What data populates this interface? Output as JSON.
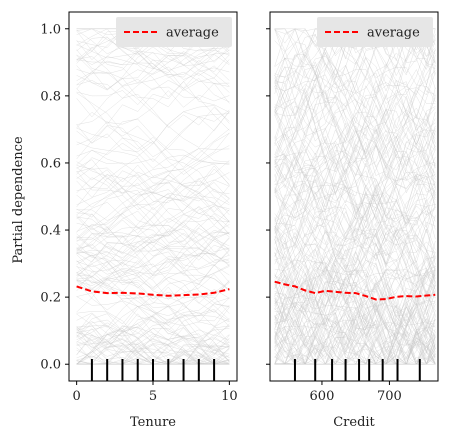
{
  "figure": {
    "ylabel": "Partial dependence",
    "sharey": true,
    "ylim": [
      -0.05,
      1.05
    ],
    "yticks": [
      0.0,
      0.2,
      0.4,
      0.6,
      0.8,
      1.0
    ],
    "ytick_labels": [
      "0.0",
      "0.2",
      "0.4",
      "0.6",
      "0.8",
      "1.0"
    ],
    "average_color": "#ff0000",
    "ice_color": "#c8c8c8",
    "rug_color": "#000000"
  },
  "chart_data": [
    {
      "type": "line",
      "kind": "individual conditional expectation with average",
      "xlabel": "Tenure",
      "xlim": [
        -0.5,
        10.5
      ],
      "xticks": [
        0,
        5,
        10
      ],
      "xtick_labels": [
        "0",
        "5",
        "10"
      ],
      "legend": {
        "label": "average",
        "placement": "top-right"
      },
      "series": [
        {
          "name": "average",
          "x": [
            0,
            1,
            2,
            3,
            4,
            5,
            6,
            7,
            8,
            9,
            10
          ],
          "values": [
            0.232,
            0.217,
            0.212,
            0.213,
            0.211,
            0.207,
            0.204,
            0.206,
            0.208,
            0.213,
            0.224
          ]
        }
      ],
      "deciles": [
        1,
        2,
        3,
        4,
        5,
        6,
        7,
        8,
        9
      ],
      "ice_range": [
        0.0,
        1.0
      ]
    },
    {
      "type": "line",
      "kind": "individual conditional expectation with average",
      "xlabel": "Credit",
      "xlim": [
        523,
        772
      ],
      "xticks": [
        600,
        700
      ],
      "xtick_labels": [
        "600",
        "700"
      ],
      "legend": {
        "label": "average",
        "placement": "top-right"
      },
      "series": [
        {
          "name": "average",
          "x": [
            530,
            545,
            560,
            575,
            590,
            605,
            620,
            635,
            650,
            665,
            680,
            695,
            710,
            725,
            740,
            755,
            768
          ],
          "values": [
            0.246,
            0.238,
            0.232,
            0.22,
            0.212,
            0.219,
            0.216,
            0.213,
            0.212,
            0.203,
            0.193,
            0.194,
            0.201,
            0.203,
            0.202,
            0.205,
            0.207
          ]
        }
      ],
      "deciles": [
        560,
        590,
        615,
        635,
        655,
        670,
        690,
        712,
        745
      ],
      "ice_range": [
        0.0,
        1.0
      ]
    }
  ]
}
